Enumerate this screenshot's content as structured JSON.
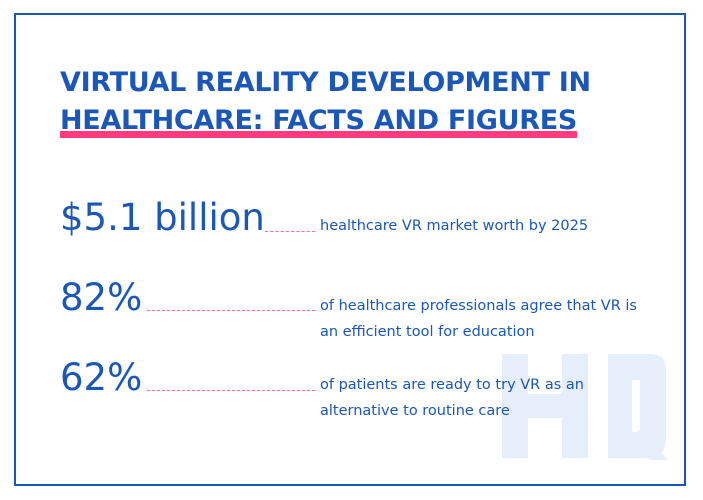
{
  "title": {
    "line1": "VIRTUAL REALITY DEVELOPMENT IN",
    "line2": "HEALTHCARE: FACTS AND FIGURES"
  },
  "stats": [
    {
      "value": "$5.1 billion",
      "desc_line1": "healthcare VR market worth by 2025",
      "desc_line2": ""
    },
    {
      "value": "82%",
      "desc_line1": "of healthcare professionals agree that VR is",
      "desc_line2": "an efficient tool for education"
    },
    {
      "value": "62%",
      "desc_line1": "of patients are ready to try VR as an",
      "desc_line2": "alternative to routine care"
    }
  ],
  "watermark": {
    "text": "HQ"
  },
  "colors": {
    "accent": "#1a57b8",
    "highlight": "#ff3b7f",
    "leader": "#ff6a9a",
    "watermark": "#e6eefb"
  }
}
